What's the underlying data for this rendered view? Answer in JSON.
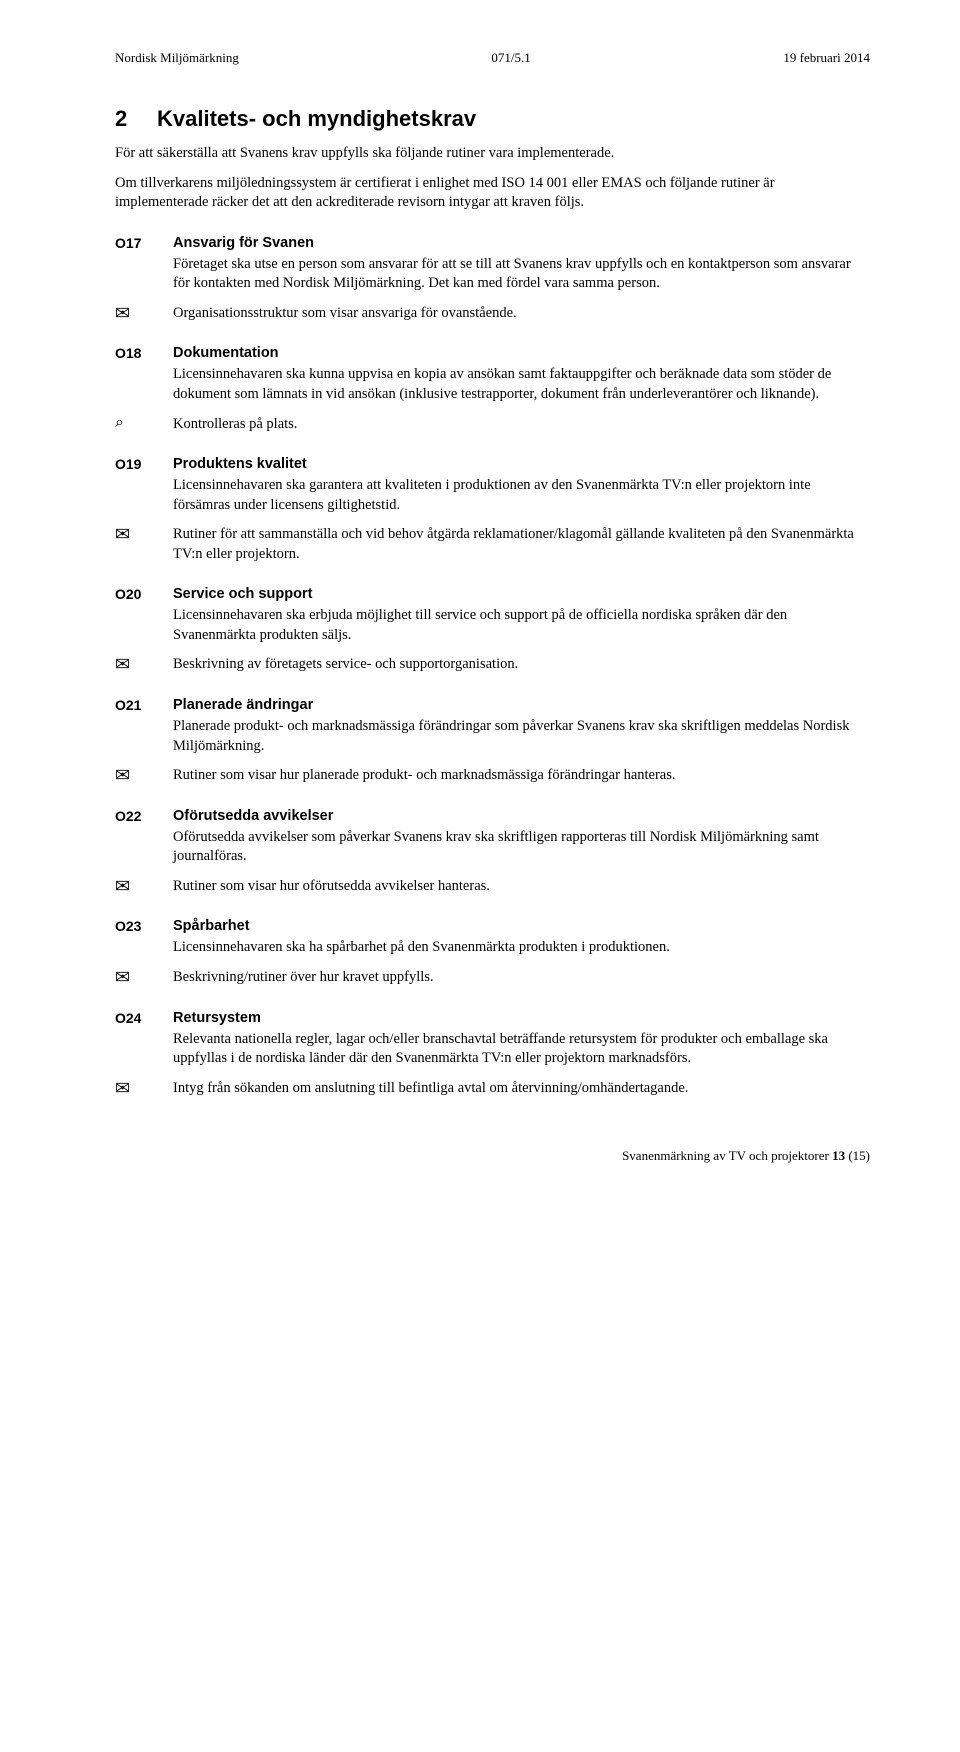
{
  "header": {
    "left": "Nordisk Miljömärkning",
    "center": "071/5.1",
    "right": "19 februari 2014"
  },
  "section": {
    "number": "2",
    "title": "Kvalitets- och myndighetskrav"
  },
  "intro1": "För att säkerställa att Svanens krav uppfylls ska följande rutiner vara implementerade.",
  "intro2": "Om tillverkarens miljöledningssystem är certifierat i enlighet med ISO 14 001 eller EMAS och följande rutiner är implementerade räcker det att den ackrediterade revisorn intygar att kraven följs.",
  "icons": {
    "envelope": "✉",
    "loupe": "⌕"
  },
  "req": {
    "o17": {
      "code": "O17",
      "title": "Ansvarig för Svanen",
      "text": "Företaget ska utse en person som ansvarar för att se till att Svanens krav uppfylls och en kontaktperson som ansvarar för kontakten med Nordisk Miljömärkning. Det kan med fördel vara samma person.",
      "evidence": "Organisationsstruktur som visar ansvariga för ovanstående."
    },
    "o18": {
      "code": "O18",
      "title": "Dokumentation",
      "text": "Licensinnehavaren ska kunna uppvisa en kopia av ansökan samt faktauppgifter och beräknade data som stöder de dokument som lämnats in vid ansökan (inklusive testrapporter, dokument från underleverantörer och liknande).",
      "evidence": "Kontrolleras på plats."
    },
    "o19": {
      "code": "O19",
      "title": "Produktens kvalitet",
      "text": "Licensinnehavaren ska garantera att kvaliteten i produktionen av den Svanenmärkta TV:n eller projektorn inte försämras under licensens giltighetstid.",
      "evidence": "Rutiner för att sammanställa och vid behov åtgärda reklamationer/klagomål gällande kvaliteten på den Svanenmärkta TV:n eller projektorn."
    },
    "o20": {
      "code": "O20",
      "title": "Service och support",
      "text": "Licensinnehavaren ska erbjuda möjlighet till service och support på de officiella nordiska språken där den Svanenmärkta produkten säljs.",
      "evidence": "Beskrivning av företagets service- och supportorganisation."
    },
    "o21": {
      "code": "O21",
      "title": "Planerade ändringar",
      "text": "Planerade produkt- och marknadsmässiga förändringar som påverkar Svanens krav ska skriftligen meddelas Nordisk Miljömärkning.",
      "evidence": "Rutiner som visar hur planerade produkt- och marknadsmässiga förändringar hanteras."
    },
    "o22": {
      "code": "O22",
      "title": "Oförutsedda avvikelser",
      "text": "Oförutsedda avvikelser som påverkar Svanens krav ska skriftligen rapporteras till Nordisk Miljömärkning samt journalföras.",
      "evidence": "Rutiner som visar hur oförutsedda avvikelser hanteras."
    },
    "o23": {
      "code": "O23",
      "title": "Spårbarhet",
      "text": "Licensinnehavaren ska ha spårbarhet på den Svanenmärkta produkten i produktionen.",
      "evidence": "Beskrivning/rutiner över hur kravet uppfylls."
    },
    "o24": {
      "code": "O24",
      "title": "Retursystem",
      "text": "Relevanta nationella regler, lagar och/eller branschavtal beträffande retursystem för produkter och emballage ska uppfyllas i de nordiska länder där den Svanenmärkta TV:n eller projektorn marknadsförs.",
      "evidence": "Intyg från sökanden om anslutning till befintliga avtal om återvinning/omhändertagande."
    }
  },
  "footer": {
    "text": "Svanenmärkning av TV och projektorer",
    "page": "13",
    "total": "(15)"
  }
}
